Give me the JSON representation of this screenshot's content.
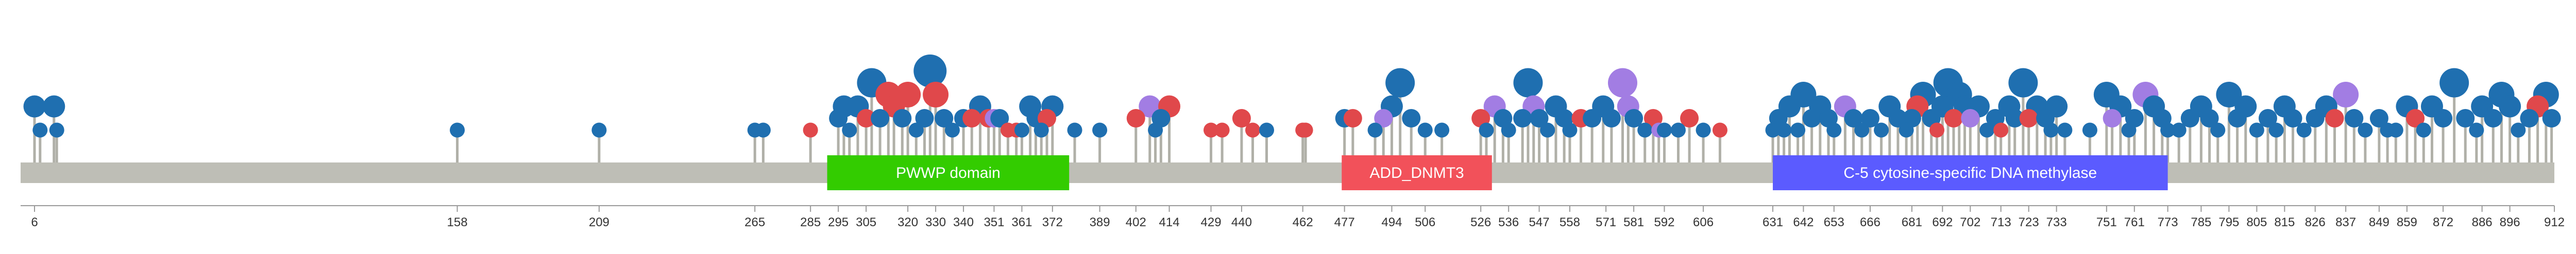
{
  "protein": {
    "length": 912,
    "backbone_color": "#bebeb6",
    "stick_color": "#b0b0a8"
  },
  "domains": [
    {
      "label": "PWWP domain",
      "start": 291,
      "end": 378,
      "color": "#33cc00"
    },
    {
      "label": "ADD_DNMT3",
      "start": 476,
      "end": 530,
      "color": "#f2515a"
    },
    {
      "label": "C-5 cytosine-specific DNA methylase",
      "start": 631,
      "end": 773,
      "color": "#5b5bff"
    }
  ],
  "axis": {
    "ticks": [
      6,
      158,
      209,
      265,
      285,
      295,
      305,
      320,
      330,
      340,
      351,
      361,
      372,
      389,
      402,
      414,
      429,
      440,
      462,
      477,
      494,
      506,
      526,
      536,
      547,
      558,
      571,
      581,
      592,
      606,
      631,
      642,
      653,
      666,
      681,
      692,
      702,
      713,
      723,
      733,
      751,
      761,
      773,
      785,
      795,
      805,
      815,
      826,
      837,
      849,
      859,
      872,
      886,
      896,
      912
    ]
  },
  "mutation_colors": {
    "missense": "#1f6fb0",
    "truncating": "#e0484b",
    "inframe": "#a27de3"
  },
  "mutations": [
    {
      "pos": 6,
      "count": 3,
      "type": "missense"
    },
    {
      "pos": 8,
      "count": 1,
      "type": "missense"
    },
    {
      "pos": 13,
      "count": 3,
      "type": "missense"
    },
    {
      "pos": 14,
      "count": 1,
      "type": "missense"
    },
    {
      "pos": 158,
      "count": 1,
      "type": "missense"
    },
    {
      "pos": 209,
      "count": 1,
      "type": "missense"
    },
    {
      "pos": 265,
      "count": 1,
      "type": "missense"
    },
    {
      "pos": 268,
      "count": 1,
      "type": "missense"
    },
    {
      "pos": 285,
      "count": 1,
      "type": "truncating"
    },
    {
      "pos": 295,
      "count": 2,
      "type": "missense"
    },
    {
      "pos": 297,
      "count": 3,
      "type": "missense"
    },
    {
      "pos": 299,
      "count": 1,
      "type": "missense"
    },
    {
      "pos": 302,
      "count": 3,
      "type": "missense"
    },
    {
      "pos": 305,
      "count": 2,
      "type": "truncating"
    },
    {
      "pos": 307,
      "count": 5,
      "type": "missense"
    },
    {
      "pos": 310,
      "count": 2,
      "type": "missense"
    },
    {
      "pos": 313,
      "count": 4,
      "type": "truncating"
    },
    {
      "pos": 315,
      "count": 3,
      "type": "truncating"
    },
    {
      "pos": 318,
      "count": 2,
      "type": "missense"
    },
    {
      "pos": 320,
      "count": 4,
      "type": "truncating"
    },
    {
      "pos": 323,
      "count": 1,
      "type": "missense"
    },
    {
      "pos": 326,
      "count": 2,
      "type": "missense"
    },
    {
      "pos": 328,
      "count": 6,
      "type": "missense"
    },
    {
      "pos": 330,
      "count": 4,
      "type": "truncating"
    },
    {
      "pos": 333,
      "count": 2,
      "type": "missense"
    },
    {
      "pos": 336,
      "count": 1,
      "type": "missense"
    },
    {
      "pos": 340,
      "count": 2,
      "type": "missense"
    },
    {
      "pos": 343,
      "count": 2,
      "type": "truncating"
    },
    {
      "pos": 346,
      "count": 3,
      "type": "missense"
    },
    {
      "pos": 349,
      "count": 2,
      "type": "truncating"
    },
    {
      "pos": 351,
      "count": 2,
      "type": "inframe"
    },
    {
      "pos": 353,
      "count": 2,
      "type": "missense"
    },
    {
      "pos": 356,
      "count": 1,
      "type": "truncating"
    },
    {
      "pos": 359,
      "count": 1,
      "type": "truncating"
    },
    {
      "pos": 361,
      "count": 1,
      "type": "missense"
    },
    {
      "pos": 364,
      "count": 3,
      "type": "missense"
    },
    {
      "pos": 366,
      "count": 2,
      "type": "missense"
    },
    {
      "pos": 368,
      "count": 1,
      "type": "missense"
    },
    {
      "pos": 370,
      "count": 2,
      "type": "truncating"
    },
    {
      "pos": 372,
      "count": 3,
      "type": "missense"
    },
    {
      "pos": 380,
      "count": 1,
      "type": "missense"
    },
    {
      "pos": 389,
      "count": 1,
      "type": "missense"
    },
    {
      "pos": 402,
      "count": 2,
      "type": "truncating"
    },
    {
      "pos": 407,
      "count": 3,
      "type": "inframe"
    },
    {
      "pos": 409,
      "count": 1,
      "type": "missense"
    },
    {
      "pos": 411,
      "count": 2,
      "type": "missense"
    },
    {
      "pos": 414,
      "count": 3,
      "type": "truncating"
    },
    {
      "pos": 429,
      "count": 1,
      "type": "truncating"
    },
    {
      "pos": 433,
      "count": 1,
      "type": "truncating"
    },
    {
      "pos": 440,
      "count": 2,
      "type": "truncating"
    },
    {
      "pos": 444,
      "count": 1,
      "type": "truncating"
    },
    {
      "pos": 449,
      "count": 1,
      "type": "missense"
    },
    {
      "pos": 462,
      "count": 1,
      "type": "truncating"
    },
    {
      "pos": 463,
      "count": 1,
      "type": "truncating"
    },
    {
      "pos": 477,
      "count": 2,
      "type": "missense"
    },
    {
      "pos": 480,
      "count": 2,
      "type": "truncating"
    },
    {
      "pos": 488,
      "count": 1,
      "type": "missense"
    },
    {
      "pos": 491,
      "count": 2,
      "type": "inframe"
    },
    {
      "pos": 494,
      "count": 3,
      "type": "missense"
    },
    {
      "pos": 497,
      "count": 5,
      "type": "missense"
    },
    {
      "pos": 501,
      "count": 2,
      "type": "missense"
    },
    {
      "pos": 506,
      "count": 1,
      "type": "missense"
    },
    {
      "pos": 512,
      "count": 1,
      "type": "missense"
    },
    {
      "pos": 526,
      "count": 2,
      "type": "truncating"
    },
    {
      "pos": 528,
      "count": 1,
      "type": "missense"
    },
    {
      "pos": 531,
      "count": 3,
      "type": "inframe"
    },
    {
      "pos": 534,
      "count": 2,
      "type": "missense"
    },
    {
      "pos": 536,
      "count": 1,
      "type": "missense"
    },
    {
      "pos": 541,
      "count": 2,
      "type": "missense"
    },
    {
      "pos": 543,
      "count": 5,
      "type": "missense"
    },
    {
      "pos": 545,
      "count": 3,
      "type": "inframe"
    },
    {
      "pos": 547,
      "count": 2,
      "type": "missense"
    },
    {
      "pos": 550,
      "count": 1,
      "type": "missense"
    },
    {
      "pos": 553,
      "count": 3,
      "type": "missense"
    },
    {
      "pos": 556,
      "count": 2,
      "type": "missense"
    },
    {
      "pos": 558,
      "count": 1,
      "type": "missense"
    },
    {
      "pos": 562,
      "count": 2,
      "type": "truncating"
    },
    {
      "pos": 566,
      "count": 2,
      "type": "missense"
    },
    {
      "pos": 570,
      "count": 3,
      "type": "missense"
    },
    {
      "pos": 573,
      "count": 2,
      "type": "missense"
    },
    {
      "pos": 577,
      "count": 5,
      "type": "inframe"
    },
    {
      "pos": 579,
      "count": 3,
      "type": "inframe"
    },
    {
      "pos": 581,
      "count": 2,
      "type": "missense"
    },
    {
      "pos": 585,
      "count": 1,
      "type": "missense"
    },
    {
      "pos": 588,
      "count": 2,
      "type": "truncating"
    },
    {
      "pos": 590,
      "count": 1,
      "type": "inframe"
    },
    {
      "pos": 592,
      "count": 1,
      "type": "missense"
    },
    {
      "pos": 597,
      "count": 1,
      "type": "missense"
    },
    {
      "pos": 601,
      "count": 2,
      "type": "truncating"
    },
    {
      "pos": 606,
      "count": 1,
      "type": "missense"
    },
    {
      "pos": 612,
      "count": 1,
      "type": "truncating"
    },
    {
      "pos": 631,
      "count": 1,
      "type": "missense"
    },
    {
      "pos": 633,
      "count": 2,
      "type": "missense"
    },
    {
      "pos": 635,
      "count": 1,
      "type": "missense"
    },
    {
      "pos": 637,
      "count": 3,
      "type": "missense"
    },
    {
      "pos": 640,
      "count": 1,
      "type": "missense"
    },
    {
      "pos": 642,
      "count": 4,
      "type": "missense"
    },
    {
      "pos": 645,
      "count": 2,
      "type": "missense"
    },
    {
      "pos": 648,
      "count": 3,
      "type": "missense"
    },
    {
      "pos": 651,
      "count": 2,
      "type": "missense"
    },
    {
      "pos": 653,
      "count": 1,
      "type": "missense"
    },
    {
      "pos": 657,
      "count": 3,
      "type": "inframe"
    },
    {
      "pos": 660,
      "count": 2,
      "type": "missense"
    },
    {
      "pos": 663,
      "count": 1,
      "type": "missense"
    },
    {
      "pos": 666,
      "count": 2,
      "type": "missense"
    },
    {
      "pos": 670,
      "count": 1,
      "type": "missense"
    },
    {
      "pos": 673,
      "count": 3,
      "type": "missense"
    },
    {
      "pos": 676,
      "count": 2,
      "type": "missense"
    },
    {
      "pos": 679,
      "count": 1,
      "type": "missense"
    },
    {
      "pos": 681,
      "count": 2,
      "type": "missense"
    },
    {
      "pos": 683,
      "count": 3,
      "type": "truncating"
    },
    {
      "pos": 685,
      "count": 4,
      "type": "missense"
    },
    {
      "pos": 688,
      "count": 2,
      "type": "missense"
    },
    {
      "pos": 690,
      "count": 1,
      "type": "truncating"
    },
    {
      "pos": 692,
      "count": 3,
      "type": "missense"
    },
    {
      "pos": 694,
      "count": 5,
      "type": "missense"
    },
    {
      "pos": 696,
      "count": 2,
      "type": "truncating"
    },
    {
      "pos": 698,
      "count": 4,
      "type": "missense"
    },
    {
      "pos": 700,
      "count": 3,
      "type": "missense"
    },
    {
      "pos": 702,
      "count": 2,
      "type": "inframe"
    },
    {
      "pos": 705,
      "count": 3,
      "type": "missense"
    },
    {
      "pos": 708,
      "count": 1,
      "type": "missense"
    },
    {
      "pos": 711,
      "count": 2,
      "type": "missense"
    },
    {
      "pos": 713,
      "count": 1,
      "type": "truncating"
    },
    {
      "pos": 716,
      "count": 3,
      "type": "missense"
    },
    {
      "pos": 718,
      "count": 2,
      "type": "missense"
    },
    {
      "pos": 721,
      "count": 5,
      "type": "missense"
    },
    {
      "pos": 723,
      "count": 2,
      "type": "truncating"
    },
    {
      "pos": 726,
      "count": 3,
      "type": "missense"
    },
    {
      "pos": 729,
      "count": 2,
      "type": "missense"
    },
    {
      "pos": 731,
      "count": 1,
      "type": "missense"
    },
    {
      "pos": 733,
      "count": 3,
      "type": "missense"
    },
    {
      "pos": 736,
      "count": 1,
      "type": "missense"
    },
    {
      "pos": 745,
      "count": 1,
      "type": "missense"
    },
    {
      "pos": 751,
      "count": 4,
      "type": "missense"
    },
    {
      "pos": 753,
      "count": 2,
      "type": "inframe"
    },
    {
      "pos": 756,
      "count": 3,
      "type": "missense"
    },
    {
      "pos": 759,
      "count": 1,
      "type": "missense"
    },
    {
      "pos": 761,
      "count": 2,
      "type": "missense"
    },
    {
      "pos": 765,
      "count": 4,
      "type": "inframe"
    },
    {
      "pos": 768,
      "count": 3,
      "type": "missense"
    },
    {
      "pos": 771,
      "count": 2,
      "type": "missense"
    },
    {
      "pos": 773,
      "count": 1,
      "type": "missense"
    },
    {
      "pos": 777,
      "count": 1,
      "type": "missense"
    },
    {
      "pos": 781,
      "count": 2,
      "type": "missense"
    },
    {
      "pos": 785,
      "count": 3,
      "type": "missense"
    },
    {
      "pos": 788,
      "count": 2,
      "type": "missense"
    },
    {
      "pos": 791,
      "count": 1,
      "type": "missense"
    },
    {
      "pos": 795,
      "count": 4,
      "type": "missense"
    },
    {
      "pos": 798,
      "count": 2,
      "type": "missense"
    },
    {
      "pos": 801,
      "count": 3,
      "type": "missense"
    },
    {
      "pos": 805,
      "count": 1,
      "type": "missense"
    },
    {
      "pos": 809,
      "count": 2,
      "type": "missense"
    },
    {
      "pos": 812,
      "count": 1,
      "type": "missense"
    },
    {
      "pos": 815,
      "count": 3,
      "type": "missense"
    },
    {
      "pos": 818,
      "count": 2,
      "type": "missense"
    },
    {
      "pos": 822,
      "count": 1,
      "type": "missense"
    },
    {
      "pos": 826,
      "count": 2,
      "type": "missense"
    },
    {
      "pos": 830,
      "count": 3,
      "type": "missense"
    },
    {
      "pos": 833,
      "count": 2,
      "type": "truncating"
    },
    {
      "pos": 837,
      "count": 4,
      "type": "inframe"
    },
    {
      "pos": 840,
      "count": 2,
      "type": "missense"
    },
    {
      "pos": 844,
      "count": 1,
      "type": "missense"
    },
    {
      "pos": 849,
      "count": 2,
      "type": "missense"
    },
    {
      "pos": 852,
      "count": 1,
      "type": "missense"
    },
    {
      "pos": 855,
      "count": 1,
      "type": "missense"
    },
    {
      "pos": 859,
      "count": 3,
      "type": "missense"
    },
    {
      "pos": 862,
      "count": 2,
      "type": "truncating"
    },
    {
      "pos": 865,
      "count": 1,
      "type": "missense"
    },
    {
      "pos": 868,
      "count": 3,
      "type": "missense"
    },
    {
      "pos": 872,
      "count": 2,
      "type": "missense"
    },
    {
      "pos": 876,
      "count": 5,
      "type": "missense"
    },
    {
      "pos": 880,
      "count": 2,
      "type": "missense"
    },
    {
      "pos": 884,
      "count": 1,
      "type": "missense"
    },
    {
      "pos": 886,
      "count": 3,
      "type": "missense"
    },
    {
      "pos": 890,
      "count": 2,
      "type": "missense"
    },
    {
      "pos": 893,
      "count": 4,
      "type": "missense"
    },
    {
      "pos": 896,
      "count": 3,
      "type": "missense"
    },
    {
      "pos": 899,
      "count": 1,
      "type": "missense"
    },
    {
      "pos": 903,
      "count": 2,
      "type": "missense"
    },
    {
      "pos": 906,
      "count": 3,
      "type": "truncating"
    },
    {
      "pos": 909,
      "count": 4,
      "type": "missense"
    },
    {
      "pos": 911,
      "count": 2,
      "type": "missense"
    }
  ]
}
